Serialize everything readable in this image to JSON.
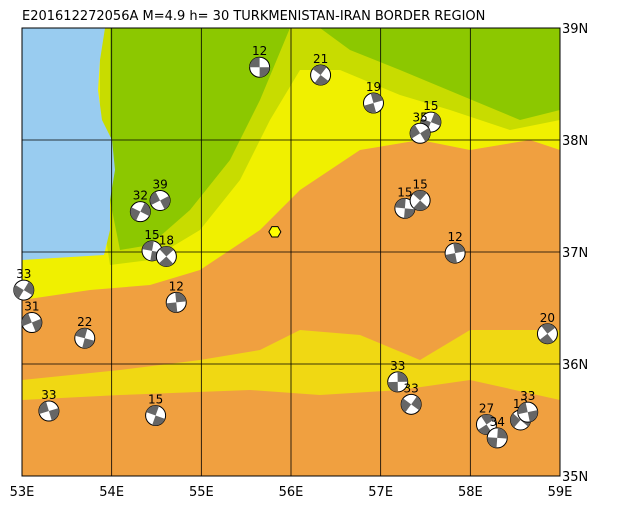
{
  "map": {
    "title": "E201612272056A M=4.9 h= 30 TURKMENISTAN-IRAN BORDER REGION",
    "lonlim": [
      53,
      59
    ],
    "latlim": [
      35,
      39
    ],
    "lonticks": [
      {
        "value": 53,
        "label": "53E"
      },
      {
        "value": 54,
        "label": "54E"
      },
      {
        "value": 55,
        "label": "55E"
      },
      {
        "value": 56,
        "label": "56E"
      },
      {
        "value": 57,
        "label": "57E"
      },
      {
        "value": 58,
        "label": "58E"
      },
      {
        "value": 59,
        "label": "59E"
      }
    ],
    "latticks": [
      {
        "value": 35,
        "label": "35N"
      },
      {
        "value": 36,
        "label": "36N"
      },
      {
        "value": 37,
        "label": "37N"
      },
      {
        "value": 38,
        "label": "38N"
      },
      {
        "value": 39,
        "label": "39N"
      }
    ],
    "epicenter": {
      "lon": 55.82,
      "lat": 37.18
    },
    "events": [
      {
        "lon": 55.65,
        "lat": 38.65,
        "depth": 12
      },
      {
        "lon": 56.33,
        "lat": 38.58,
        "depth": 21
      },
      {
        "lon": 56.92,
        "lat": 38.33,
        "depth": 19
      },
      {
        "lon": 57.56,
        "lat": 38.16,
        "depth": 15
      },
      {
        "lon": 57.44,
        "lat": 38.06,
        "depth": 35
      },
      {
        "lon": 57.27,
        "lat": 37.39,
        "depth": 15
      },
      {
        "lon": 57.44,
        "lat": 37.46,
        "depth": 15
      },
      {
        "lon": 57.83,
        "lat": 36.99,
        "depth": 12
      },
      {
        "lon": 54.32,
        "lat": 37.36,
        "depth": 32
      },
      {
        "lon": 54.54,
        "lat": 37.46,
        "depth": 39
      },
      {
        "lon": 54.45,
        "lat": 37.01,
        "depth": 15
      },
      {
        "lon": 54.61,
        "lat": 36.96,
        "depth": 18
      },
      {
        "lon": 54.72,
        "lat": 36.55,
        "depth": 12
      },
      {
        "lon": 53.02,
        "lat": 36.66,
        "depth": 33
      },
      {
        "lon": 53.11,
        "lat": 36.37,
        "depth": 31
      },
      {
        "lon": 53.7,
        "lat": 36.23,
        "depth": 22
      },
      {
        "lon": 58.86,
        "lat": 36.27,
        "depth": 20
      },
      {
        "lon": 57.19,
        "lat": 35.84,
        "depth": 33
      },
      {
        "lon": 57.34,
        "lat": 35.64,
        "depth": 33
      },
      {
        "lon": 53.3,
        "lat": 35.58,
        "depth": 33
      },
      {
        "lon": 54.49,
        "lat": 35.54,
        "depth": 15
      },
      {
        "lon": 58.18,
        "lat": 35.46,
        "depth": 27
      },
      {
        "lon": 58.3,
        "lat": 35.34,
        "depth": 34
      },
      {
        "lon": 58.56,
        "lat": 35.5,
        "depth": 12
      },
      {
        "lon": 58.64,
        "lat": 35.57,
        "depth": 33
      }
    ]
  }
}
